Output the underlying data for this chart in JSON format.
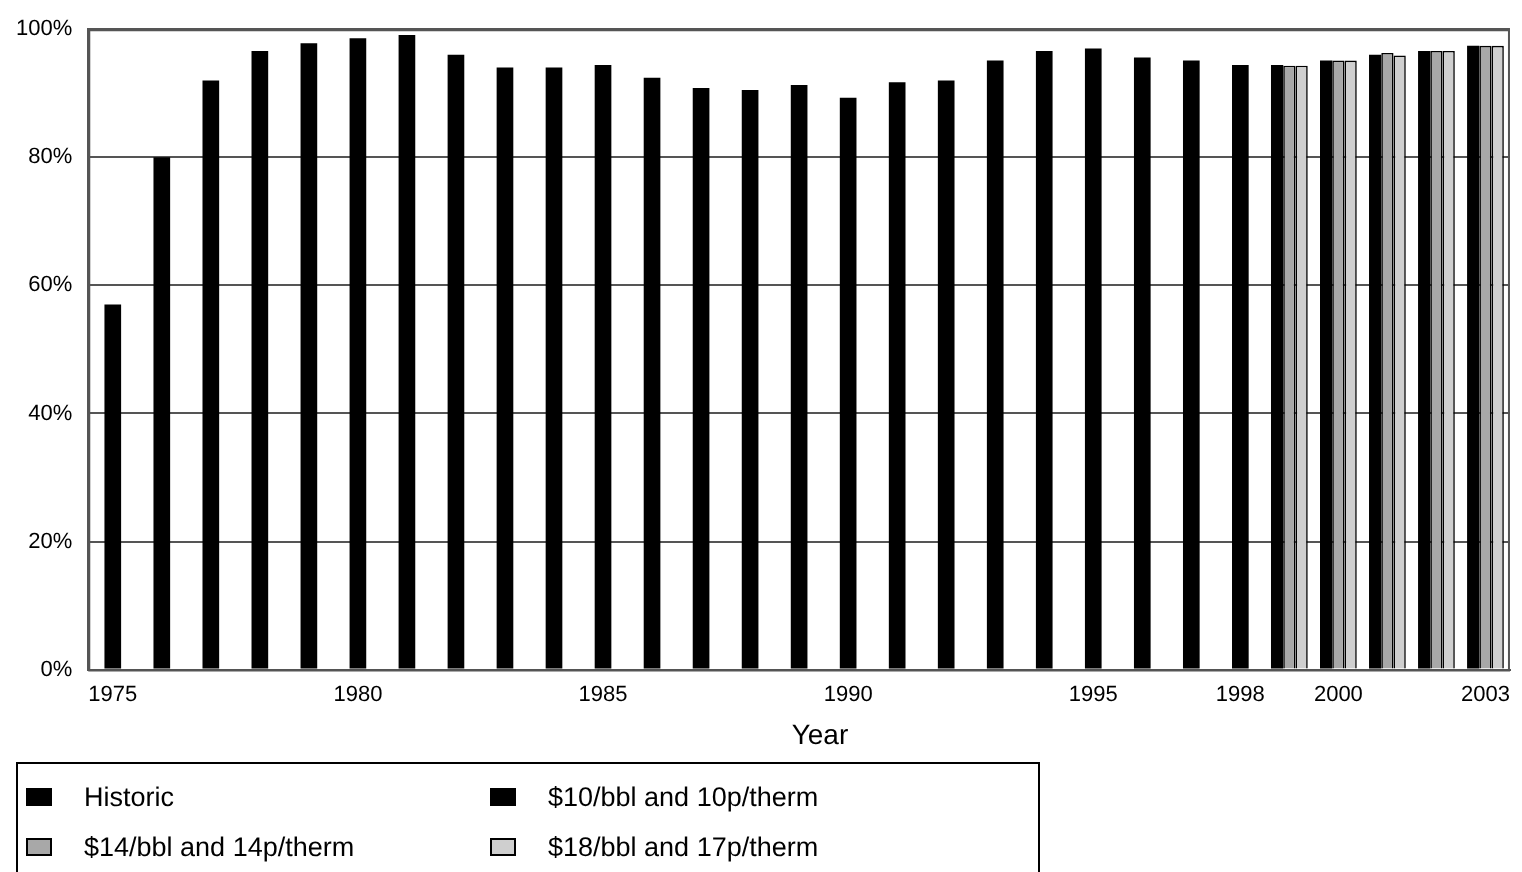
{
  "chart_data": {
    "type": "bar",
    "xlabel": "Year",
    "categories": [
      "1975",
      null,
      null,
      null,
      null,
      "1980",
      null,
      null,
      null,
      null,
      "1985",
      null,
      null,
      null,
      null,
      "1990",
      null,
      null,
      null,
      null,
      "1995",
      null,
      null,
      "1998",
      null,
      "2000",
      null,
      null,
      "2003"
    ],
    "series": [
      {
        "name": "Historic",
        "color": "#000000",
        "values": [
          57,
          80,
          92,
          96.6,
          97.8,
          98.6,
          99.1,
          96,
          94,
          94,
          94.4,
          92.4,
          90.8,
          90.5,
          91.3,
          89.3,
          91.7,
          92,
          95.1,
          96.6,
          97,
          95.6,
          95.1,
          94.4,
          null,
          null,
          null,
          null,
          null
        ]
      },
      {
        "name": "$10/bbl and 10p/therm",
        "color": "#000000",
        "values": [
          null,
          null,
          null,
          null,
          null,
          null,
          null,
          null,
          null,
          null,
          null,
          null,
          null,
          null,
          null,
          null,
          null,
          null,
          null,
          null,
          null,
          null,
          null,
          null,
          94.4,
          95.1,
          96,
          96.6,
          97.4
        ]
      },
      {
        "name": "$14/bbl and 14p/therm",
        "color": "#a8a8a8",
        "values": [
          null,
          null,
          null,
          null,
          null,
          null,
          null,
          null,
          null,
          null,
          null,
          null,
          null,
          null,
          null,
          null,
          null,
          null,
          null,
          null,
          null,
          null,
          null,
          null,
          94.3,
          95.1,
          96.3,
          96.6,
          97.4
        ]
      },
      {
        "name": "$18/bbl and 17p/therm",
        "color": "#cfcfcf",
        "values": [
          null,
          null,
          null,
          null,
          null,
          null,
          null,
          null,
          null,
          null,
          null,
          null,
          null,
          null,
          null,
          null,
          null,
          null,
          null,
          null,
          null,
          null,
          null,
          null,
          94.3,
          95.1,
          95.9,
          96.6,
          97.4
        ]
      }
    ],
    "ylim": [
      0,
      100
    ],
    "yticks": [
      {
        "value": 0,
        "label": "0%"
      },
      {
        "value": 20,
        "label": "20%"
      },
      {
        "value": 40,
        "label": "40%"
      },
      {
        "value": 60,
        "label": "60%"
      },
      {
        "value": 80,
        "label": "80%"
      },
      {
        "value": 100,
        "label": "100%"
      }
    ],
    "grid": "y",
    "legend": "bottom"
  }
}
